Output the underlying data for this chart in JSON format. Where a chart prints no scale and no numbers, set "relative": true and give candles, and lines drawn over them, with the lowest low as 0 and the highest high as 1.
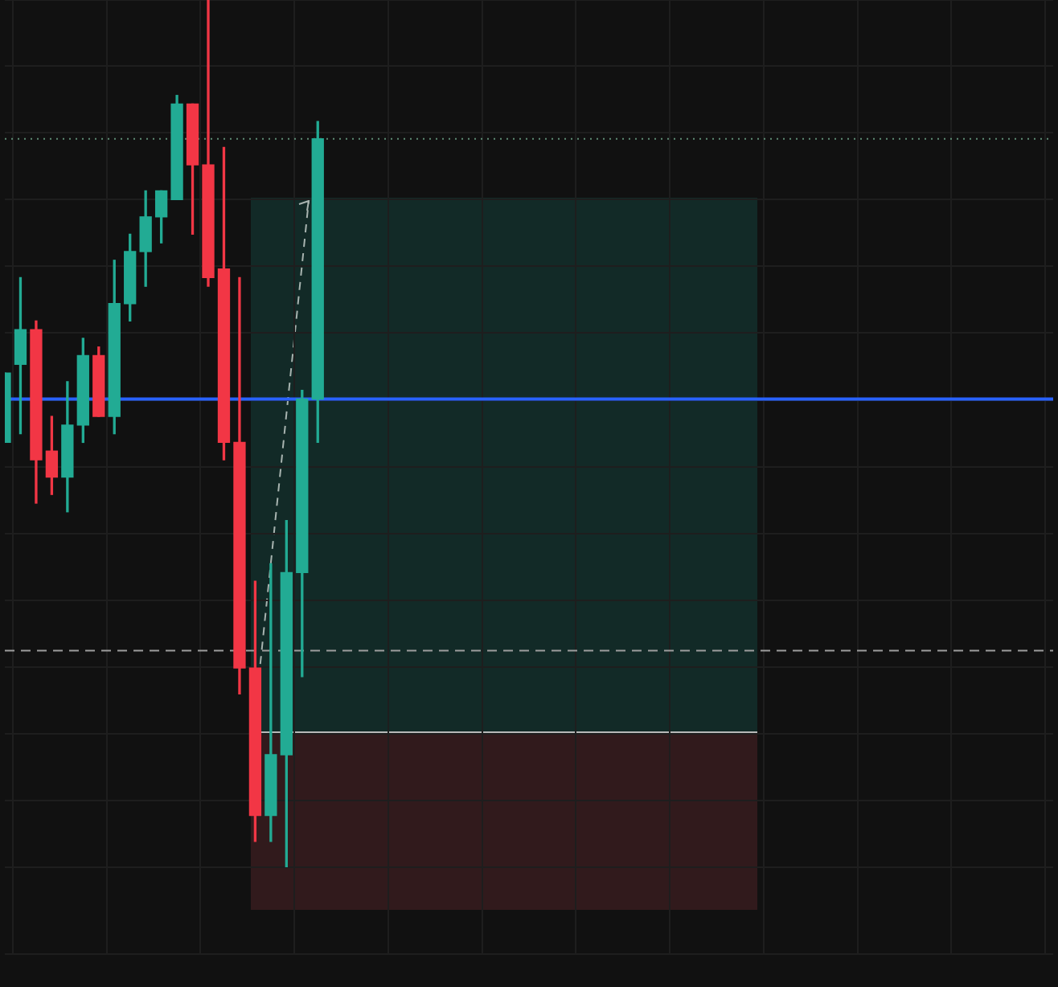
{
  "chart_data": {
    "type": "candlestick",
    "relative": true,
    "grid": true,
    "categories": [
      null,
      null,
      null,
      null,
      null,
      null,
      null,
      null,
      null,
      null,
      null,
      null,
      null,
      null,
      null,
      null,
      null,
      null,
      null,
      null,
      null,
      null,
      null,
      null,
      null,
      null,
      null,
      null,
      null,
      null,
      null,
      null,
      null,
      null,
      null,
      null,
      null,
      null,
      null,
      null,
      null,
      null,
      null,
      null,
      null,
      null,
      null,
      null,
      null,
      null,
      null,
      null,
      null,
      null,
      null,
      null,
      null,
      null,
      null,
      null,
      null,
      null,
      null,
      null,
      null,
      null,
      null,
      null
    ],
    "ohlc": [
      [
        0.49,
        0.57,
        0.49,
        0.57
      ],
      [
        0.58,
        0.68,
        0.5,
        0.62
      ],
      [
        0.62,
        0.63,
        0.42,
        0.47
      ],
      [
        0.48,
        0.52,
        0.43,
        0.45
      ],
      [
        0.45,
        0.56,
        0.41,
        0.51
      ],
      [
        0.51,
        0.61,
        0.49,
        0.59
      ],
      [
        0.59,
        0.6,
        0.52,
        0.52
      ],
      [
        0.52,
        0.7,
        0.5,
        0.65
      ],
      [
        0.65,
        0.73,
        0.63,
        0.71
      ],
      [
        0.71,
        0.78,
        0.67,
        0.75
      ],
      [
        0.75,
        0.78,
        0.72,
        0.78
      ],
      [
        0.77,
        0.89,
        0.77,
        0.88
      ],
      [
        0.88,
        0.88,
        0.73,
        0.81
      ],
      [
        0.81,
        1,
        0.67,
        0.68
      ],
      [
        0.69,
        0.83,
        0.47,
        0.49
      ],
      [
        0.49,
        0.68,
        0.2,
        0.23
      ],
      [
        0.23,
        0.33,
        0.03,
        0.06
      ],
      [
        0.06,
        0.35,
        0.03,
        0.13
      ],
      [
        0.13,
        0.4,
        0,
        0.34
      ],
      [
        0.34,
        0.55,
        0.22,
        0.54
      ],
      [
        0.54,
        0.86,
        0.49,
        0.84
      ],
      null,
      null,
      null,
      null,
      null,
      null,
      null,
      null,
      null,
      null,
      null,
      null,
      null,
      null,
      null,
      null,
      null,
      null,
      null,
      null,
      null,
      null,
      null,
      null,
      null,
      null,
      null,
      null,
      null,
      null,
      null,
      null,
      null,
      null,
      null,
      null,
      null,
      null,
      null,
      null,
      null,
      null,
      null,
      null,
      null,
      null,
      null
    ],
    "colors": [
      "#22ab94",
      "#22ab94",
      "#f23645",
      "#f23645",
      "#22ab94",
      "#22ab94",
      "#f23645",
      "#22ab94",
      "#22ab94",
      "#22ab94",
      "#22ab94",
      "#22ab94",
      "#f23645",
      "#f23645",
      "#f23645",
      "#f23645",
      "#f23645",
      "#22ab94",
      "#22ab94",
      "#22ab94",
      "#22ab94",
      null,
      null,
      null,
      null,
      null,
      null,
      null,
      null,
      null,
      null,
      null,
      null,
      null,
      null,
      null,
      null,
      null,
      null,
      null,
      null,
      null,
      null,
      null,
      null,
      null,
      null,
      null,
      null,
      null,
      null,
      null,
      null,
      null,
      null,
      null,
      null,
      null,
      null,
      null,
      null,
      null,
      null,
      null,
      null,
      null,
      null,
      null
    ],
    "ref_lines": [
      {
        "axis": "y",
        "value": 0.84,
        "color": "#5e8c74",
        "line_style": "dotted"
      },
      {
        "axis": "y",
        "value": 0.54,
        "color": "#2962ff",
        "line_style": "solid"
      },
      {
        "axis": "y",
        "value": 0.25,
        "color": "#9e9e9e",
        "line_style": "dashed"
      }
    ]
  }
}
